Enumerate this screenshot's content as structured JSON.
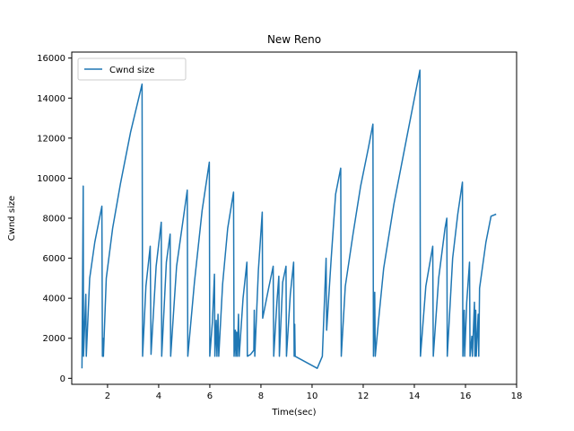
{
  "chart_data": {
    "type": "line",
    "title": "New Reno",
    "xlabel": "Time(sec)",
    "ylabel": "Cwnd size",
    "xlim": [
      0.6,
      18.0
    ],
    "ylim": [
      -300,
      16300
    ],
    "xticks": [
      2,
      4,
      6,
      8,
      10,
      12,
      14,
      16,
      18
    ],
    "yticks": [
      0,
      2000,
      4000,
      6000,
      8000,
      10000,
      12000,
      14000,
      16000
    ],
    "grid": false,
    "legend_position": "top-left",
    "series": [
      {
        "name": "Cwnd size",
        "color": "#1f77b4",
        "points": [
          [
            1.0,
            500
          ],
          [
            1.05,
            9600
          ],
          [
            1.06,
            1100
          ],
          [
            1.15,
            4200
          ],
          [
            1.17,
            1100
          ],
          [
            1.3,
            5000
          ],
          [
            1.5,
            6800
          ],
          [
            1.78,
            8600
          ],
          [
            1.8,
            1100
          ],
          [
            1.82,
            2000
          ],
          [
            1.84,
            1100
          ],
          [
            1.95,
            5000
          ],
          [
            2.2,
            7500
          ],
          [
            2.5,
            9700
          ],
          [
            2.9,
            12300
          ],
          [
            3.35,
            14700
          ],
          [
            3.37,
            1100
          ],
          [
            3.5,
            4600
          ],
          [
            3.67,
            6600
          ],
          [
            3.7,
            1200
          ],
          [
            3.9,
            5600
          ],
          [
            4.1,
            7800
          ],
          [
            4.12,
            1100
          ],
          [
            4.3,
            5800
          ],
          [
            4.45,
            7200
          ],
          [
            4.47,
            1100
          ],
          [
            4.7,
            5600
          ],
          [
            5.12,
            9400
          ],
          [
            5.14,
            1100
          ],
          [
            5.4,
            4800
          ],
          [
            5.7,
            8400
          ],
          [
            5.98,
            10800
          ],
          [
            6.0,
            1100
          ],
          [
            6.1,
            2800
          ],
          [
            6.18,
            5200
          ],
          [
            6.2,
            1100
          ],
          [
            6.25,
            2900
          ],
          [
            6.28,
            1100
          ],
          [
            6.32,
            3200
          ],
          [
            6.35,
            1100
          ],
          [
            6.5,
            4700
          ],
          [
            6.7,
            7500
          ],
          [
            6.93,
            9300
          ],
          [
            6.95,
            1100
          ],
          [
            7.0,
            2400
          ],
          [
            7.02,
            1100
          ],
          [
            7.05,
            2300
          ],
          [
            7.08,
            1100
          ],
          [
            7.12,
            3200
          ],
          [
            7.15,
            1100
          ],
          [
            7.3,
            4000
          ],
          [
            7.45,
            5800
          ],
          [
            7.47,
            1100
          ],
          [
            7.6,
            1200
          ],
          [
            7.72,
            1400
          ],
          [
            7.74,
            3400
          ],
          [
            7.76,
            1100
          ],
          [
            7.9,
            5400
          ],
          [
            8.05,
            8300
          ],
          [
            8.07,
            3000
          ],
          [
            8.3,
            4500
          ],
          [
            8.48,
            5600
          ],
          [
            8.5,
            1100
          ],
          [
            8.62,
            3700
          ],
          [
            8.7,
            5100
          ],
          [
            8.72,
            1100
          ],
          [
            8.85,
            4800
          ],
          [
            8.98,
            5600
          ],
          [
            9.0,
            1100
          ],
          [
            9.15,
            4200
          ],
          [
            9.28,
            5800
          ],
          [
            9.3,
            1100
          ],
          [
            9.32,
            2700
          ],
          [
            9.34,
            1100
          ],
          [
            10.2,
            500
          ],
          [
            10.4,
            1100
          ],
          [
            10.55,
            6000
          ],
          [
            10.57,
            2400
          ],
          [
            10.75,
            6000
          ],
          [
            10.92,
            9200
          ],
          [
            11.12,
            10500
          ],
          [
            11.14,
            1100
          ],
          [
            11.3,
            4600
          ],
          [
            11.6,
            7200
          ],
          [
            11.9,
            9600
          ],
          [
            12.2,
            11500
          ],
          [
            12.38,
            12700
          ],
          [
            12.4,
            1100
          ],
          [
            12.45,
            4300
          ],
          [
            12.47,
            1100
          ],
          [
            12.6,
            2900
          ],
          [
            12.8,
            5500
          ],
          [
            13.2,
            8700
          ],
          [
            13.7,
            12000
          ],
          [
            14.22,
            15400
          ],
          [
            14.24,
            1100
          ],
          [
            14.45,
            4600
          ],
          [
            14.72,
            6600
          ],
          [
            14.74,
            1100
          ],
          [
            14.95,
            5000
          ],
          [
            15.2,
            7500
          ],
          [
            15.27,
            8000
          ],
          [
            15.29,
            1100
          ],
          [
            15.5,
            6000
          ],
          [
            15.7,
            8200
          ],
          [
            15.88,
            9800
          ],
          [
            15.9,
            1100
          ],
          [
            15.95,
            3400
          ],
          [
            15.97,
            1100
          ],
          [
            16.05,
            3800
          ],
          [
            16.16,
            5800
          ],
          [
            16.18,
            1100
          ],
          [
            16.25,
            2100
          ],
          [
            16.27,
            1100
          ],
          [
            16.35,
            3800
          ],
          [
            16.37,
            1100
          ],
          [
            16.4,
            3400
          ],
          [
            16.42,
            1100
          ],
          [
            16.5,
            3200
          ],
          [
            16.52,
            1100
          ],
          [
            16.55,
            4500
          ],
          [
            16.8,
            6800
          ],
          [
            17.0,
            8100
          ],
          [
            17.2,
            8200
          ]
        ]
      }
    ]
  }
}
